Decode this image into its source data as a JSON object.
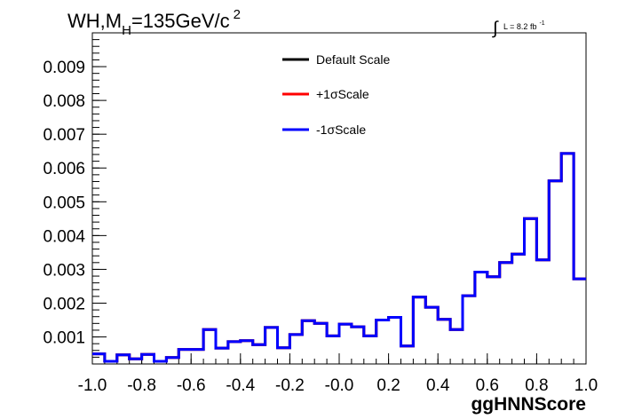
{
  "chart_data": {
    "type": "line",
    "title": {
      "main": "WH,M",
      "sub": "H",
      "rest": "=135GeV/c",
      "sup": "2"
    },
    "lumi": {
      "integral": "∫",
      "text": "L = 8.2 fb",
      "sup": "-1"
    },
    "xlabel": "ggHNNScore",
    "ylabel": "",
    "xlim": [
      -1.0,
      1.0
    ],
    "ylim": [
      0.0002,
      0.01
    ],
    "x_ticks": [
      -1.0,
      -0.8,
      -0.6,
      -0.4,
      -0.2,
      0.0,
      0.2,
      0.4,
      0.6,
      0.8,
      1.0
    ],
    "x_tick_labels": [
      "-1.0",
      "-0.8",
      "-0.6",
      "-0.4",
      "-0.2",
      "-0.0",
      "0.2",
      "0.4",
      "0.6",
      "0.8",
      "1.0"
    ],
    "y_ticks": [
      0.001,
      0.002,
      0.003,
      0.004,
      0.005,
      0.006,
      0.007,
      0.008,
      0.009
    ],
    "y_tick_labels": [
      "0.001",
      "0.002",
      "0.003",
      "0.004",
      "0.005",
      "0.006",
      "0.007",
      "0.008",
      "0.009"
    ],
    "legend_position": "top-right",
    "bin_edges": [
      -1.0,
      -0.95,
      -0.9,
      -0.85,
      -0.8,
      -0.75,
      -0.7,
      -0.65,
      -0.6,
      -0.55,
      -0.5,
      -0.45,
      -0.4,
      -0.35,
      -0.3,
      -0.25,
      -0.2,
      -0.15,
      -0.1,
      -0.05,
      0.0,
      0.05,
      0.1,
      0.15,
      0.2,
      0.25,
      0.3,
      0.35,
      0.4,
      0.45,
      0.5,
      0.55,
      0.6,
      0.65,
      0.7,
      0.75,
      0.8,
      0.85,
      0.9,
      0.95,
      1.0
    ],
    "series": [
      {
        "name": "Default Scale",
        "color": "#000000",
        "values": [
          0.0005,
          0.00028,
          0.00047,
          0.00035,
          0.00048,
          0.00028,
          0.00039,
          0.00063,
          0.00063,
          0.00122,
          0.00067,
          0.00086,
          0.00089,
          0.00077,
          0.00128,
          0.00068,
          0.00107,
          0.00148,
          0.0014,
          0.00103,
          0.00138,
          0.0013,
          0.00103,
          0.0015,
          0.00158,
          0.00073,
          0.00218,
          0.00188,
          0.00152,
          0.00122,
          0.00222,
          0.00292,
          0.00278,
          0.0032,
          0.00345,
          0.0045,
          0.00328,
          0.00562,
          0.00643,
          0.00272
        ]
      },
      {
        "name": "+1σScale",
        "color": "#ff0000",
        "values": [
          0.0005,
          0.00028,
          0.00047,
          0.00035,
          0.00048,
          0.00028,
          0.00039,
          0.00063,
          0.00063,
          0.00122,
          0.00067,
          0.00086,
          0.00089,
          0.00077,
          0.00128,
          0.00068,
          0.00107,
          0.00148,
          0.0014,
          0.00103,
          0.00138,
          0.0013,
          0.00103,
          0.0015,
          0.00158,
          0.00073,
          0.00218,
          0.00188,
          0.00152,
          0.00122,
          0.00222,
          0.00292,
          0.00278,
          0.0032,
          0.00345,
          0.0045,
          0.00328,
          0.00562,
          0.00643,
          0.00272
        ]
      },
      {
        "name": "-1σScale",
        "color": "#0000ff",
        "values": [
          0.0005,
          0.00028,
          0.00047,
          0.00035,
          0.00048,
          0.00028,
          0.00039,
          0.00063,
          0.00063,
          0.00122,
          0.00067,
          0.00086,
          0.00089,
          0.00077,
          0.00128,
          0.00068,
          0.00107,
          0.00148,
          0.0014,
          0.00103,
          0.00138,
          0.0013,
          0.00103,
          0.0015,
          0.00158,
          0.00073,
          0.00218,
          0.00188,
          0.00152,
          0.00122,
          0.00222,
          0.00292,
          0.00278,
          0.0032,
          0.00345,
          0.0045,
          0.00328,
          0.00562,
          0.00643,
          0.00272
        ]
      }
    ]
  }
}
